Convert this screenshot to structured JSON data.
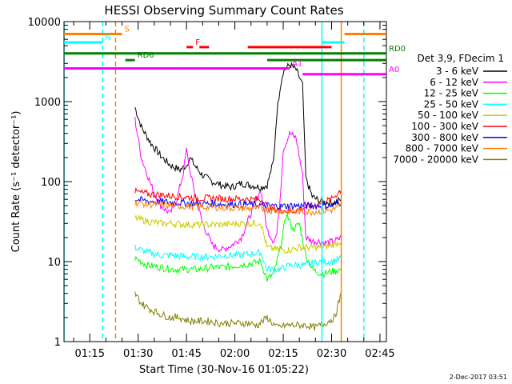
{
  "chart_data": {
    "type": "line",
    "title": "HESSI Observing Summary Count Rates",
    "xlabel": "Start Time (30-Nov-16 01:05:22)",
    "ylabel": "Count Rate (s⁻¹ detector⁻¹)",
    "x_range": [
      "01:07",
      "02:47"
    ],
    "x_ticks": [
      "01:15",
      "01:30",
      "01:45",
      "02:00",
      "02:15",
      "02:30",
      "02:45"
    ],
    "y_scale": "log",
    "ylim": [
      1,
      10000
    ],
    "y_ticks": [
      "1",
      "10",
      "100",
      "1000",
      "10000"
    ],
    "legend_title": "Det 3,9, FDecim 1",
    "legend_placement": "right",
    "series": [
      {
        "name": "3 - 6 keV",
        "color": "#000000",
        "x": [
          "01:29",
          "01:31",
          "01:34",
          "01:37",
          "01:40",
          "01:43",
          "01:45",
          "01:46",
          "01:48",
          "01:50",
          "01:53",
          "01:56",
          "01:59",
          "02:02",
          "02:05",
          "02:08",
          "02:10",
          "02:12",
          "02:13",
          "02:14",
          "02:15",
          "02:17",
          "02:19",
          "02:21",
          "02:22",
          "02:24",
          "02:26",
          "02:28",
          "02:31",
          "02:33"
        ],
        "y": [
          850,
          480,
          300,
          210,
          160,
          140,
          160,
          200,
          150,
          120,
          100,
          90,
          85,
          95,
          90,
          85,
          90,
          180,
          700,
          1500,
          2400,
          2900,
          2500,
          1600,
          110,
          65,
          58,
          55,
          55,
          60
        ]
      },
      {
        "name": "6 - 12 keV",
        "color": "#ff00ff",
        "x": [
          "01:29",
          "01:31",
          "01:34",
          "01:37",
          "01:40",
          "01:42",
          "01:44",
          "01:45",
          "01:46",
          "01:48",
          "01:50",
          "01:53",
          "01:56",
          "01:59",
          "02:02",
          "02:05",
          "02:08",
          "02:10",
          "02:12",
          "02:13",
          "02:14",
          "02:15",
          "02:17",
          "02:19",
          "02:21",
          "02:22",
          "02:24",
          "02:26",
          "02:28",
          "02:31",
          "02:33"
        ],
        "y": [
          600,
          200,
          90,
          50,
          40,
          60,
          130,
          250,
          140,
          60,
          30,
          16,
          14,
          16,
          20,
          40,
          80,
          25,
          18,
          22,
          60,
          250,
          400,
          350,
          120,
          20,
          18,
          18,
          17,
          18,
          20
        ]
      },
      {
        "name": "12 - 25 keV",
        "color": "#00ff00",
        "x": [
          "01:29",
          "01:33",
          "01:37",
          "01:41",
          "01:45",
          "01:49",
          "01:53",
          "01:57",
          "02:01",
          "02:05",
          "02:08",
          "02:10",
          "02:12",
          "02:14",
          "02:16",
          "02:18",
          "02:20",
          "02:22",
          "02:24",
          "02:27",
          "02:30",
          "02:33"
        ],
        "y": [
          11,
          9,
          8.5,
          8,
          8,
          8,
          8.5,
          8.5,
          9,
          9.5,
          10,
          6,
          7,
          14,
          40,
          25,
          30,
          12,
          8,
          7,
          7.5,
          8
        ]
      },
      {
        "name": "25 - 50 keV",
        "color": "#00ffff",
        "x": [
          "01:29",
          "01:33",
          "01:37",
          "01:41",
          "01:45",
          "01:49",
          "01:53",
          "01:57",
          "02:01",
          "02:05",
          "02:08",
          "02:10",
          "02:14",
          "02:17",
          "02:20",
          "02:22",
          "02:24",
          "02:27",
          "02:30",
          "02:33"
        ],
        "y": [
          15,
          13,
          12,
          12,
          11.5,
          11.5,
          11.5,
          12,
          12,
          12.5,
          13,
          8,
          8,
          9,
          9,
          9,
          9.5,
          10,
          10,
          11
        ]
      },
      {
        "name": "50 - 100 keV",
        "color": "#cccc00",
        "x": [
          "01:29",
          "01:33",
          "01:37",
          "01:41",
          "01:45",
          "01:49",
          "01:53",
          "01:57",
          "02:01",
          "02:05",
          "02:08",
          "02:10",
          "02:14",
          "02:17",
          "02:20",
          "02:22",
          "02:24",
          "02:27",
          "02:30",
          "02:33"
        ],
        "y": [
          35,
          32,
          30,
          30,
          29,
          29,
          29,
          29,
          30,
          30,
          31,
          15,
          14,
          14,
          15,
          15,
          15,
          15,
          16,
          18
        ]
      },
      {
        "name": "100 - 300 keV",
        "color": "#ff0000",
        "x": [
          "01:29",
          "01:33",
          "01:37",
          "01:41",
          "01:45",
          "01:49",
          "01:53",
          "01:57",
          "02:01",
          "02:05",
          "02:08",
          "02:11",
          "02:14",
          "02:17",
          "02:20",
          "02:22",
          "02:24",
          "02:27",
          "02:30",
          "02:33"
        ],
        "y": [
          75,
          70,
          68,
          66,
          64,
          62,
          62,
          61,
          61,
          60,
          60,
          45,
          45,
          42,
          45,
          48,
          50,
          55,
          60,
          80
        ]
      },
      {
        "name": "300 - 800 keV",
        "color": "#0000ff",
        "x": [
          "01:29",
          "01:33",
          "01:37",
          "01:41",
          "01:45",
          "01:49",
          "01:53",
          "01:57",
          "02:01",
          "02:05",
          "02:08",
          "02:11",
          "02:14",
          "02:17",
          "02:20",
          "02:22",
          "02:24",
          "02:27",
          "02:30",
          "02:33"
        ],
        "y": [
          60,
          57,
          56,
          55,
          54,
          53,
          53,
          52,
          52,
          52,
          51,
          50,
          49,
          50,
          50,
          50,
          50,
          50,
          50,
          55
        ]
      },
      {
        "name": "800 - 7000 keV",
        "color": "#ff8000",
        "x": [
          "01:29",
          "01:33",
          "01:37",
          "01:41",
          "01:45",
          "01:49",
          "01:53",
          "01:57",
          "02:01",
          "02:05",
          "02:08",
          "02:11",
          "02:14",
          "02:17",
          "02:20",
          "02:22",
          "02:24",
          "02:27",
          "02:30",
          "02:33"
        ],
        "y": [
          55,
          52,
          51,
          50,
          49,
          48,
          48,
          47,
          47,
          46,
          46,
          44,
          43,
          43,
          42,
          42,
          42,
          43,
          44,
          50
        ]
      },
      {
        "name": "7000 - 20000 keV",
        "color": "#808000",
        "x": [
          "01:29",
          "01:31",
          "01:34",
          "01:37",
          "01:40",
          "01:43",
          "01:46",
          "01:49",
          "01:52",
          "01:55",
          "01:58",
          "02:01",
          "02:04",
          "02:07",
          "02:10",
          "02:13",
          "02:16",
          "02:19",
          "02:22",
          "02:25",
          "02:28",
          "02:31",
          "02:33"
        ],
        "y": [
          4,
          3,
          2.5,
          2.2,
          2,
          2,
          1.8,
          1.8,
          1.8,
          1.7,
          1.7,
          1.7,
          1.7,
          1.6,
          2,
          1.5,
          1.6,
          1.6,
          1.6,
          1.5,
          1.7,
          2,
          4
        ]
      }
    ],
    "flags": [
      {
        "label": "S",
        "color": "#ff8000",
        "y": 7000,
        "segments": [
          [
            "01:07",
            "01:25"
          ],
          [
            "02:34",
            "02:47"
          ]
        ]
      },
      {
        "label": "N",
        "color": "#00ffff",
        "y": 5500,
        "segments": [
          [
            "01:07",
            "01:19"
          ],
          [
            "02:27",
            "02:34"
          ]
        ]
      },
      {
        "label": "F",
        "color": "#ff0000",
        "y": 4800,
        "segments": [
          [
            "01:45",
            "01:47"
          ],
          [
            "01:49",
            "01:52"
          ],
          [
            "02:04",
            "02:30"
          ]
        ]
      },
      {
        "label": "RD0",
        "color": "#008000",
        "y": 4000,
        "segments": [
          [
            "01:07",
            "02:47"
          ]
        ]
      },
      {
        "label": "RD6",
        "color": "#008000",
        "y": 3300,
        "segments": [
          [
            "01:26",
            "01:29"
          ],
          [
            "02:10",
            "02:47"
          ]
        ]
      },
      {
        "label": "A1",
        "color": "#ff00ff",
        "y": 2600,
        "segments": [
          [
            "01:07",
            "02:17"
          ]
        ]
      },
      {
        "label": "A0",
        "color": "#ff00ff",
        "y": 2200,
        "segments": [
          [
            "02:21",
            "02:47"
          ]
        ]
      }
    ],
    "vertical_markers": [
      {
        "x": "01:07",
        "color": "#00ffff",
        "style": "solid"
      },
      {
        "x": "01:19",
        "color": "#00ffff",
        "style": "dashed"
      },
      {
        "x": "01:23",
        "color": "#ff8000",
        "style": "dashed"
      },
      {
        "x": "02:27",
        "color": "#00ffff",
        "style": "solid"
      },
      {
        "x": "02:33",
        "color": "#ff8000",
        "style": "solid"
      },
      {
        "x": "02:40",
        "color": "#00ffff",
        "style": "dashed"
      }
    ]
  },
  "footer": {
    "date": "2-Dec-2017 03:51"
  }
}
